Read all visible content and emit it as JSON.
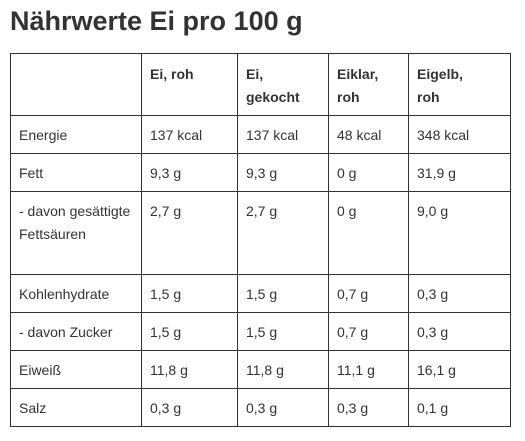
{
  "title": "Nährwerte Ei pro 100 g",
  "table": {
    "headers": [
      "",
      "Ei, roh",
      "Ei,\ngekocht",
      "Eiklar,\nroh",
      "Eigelb,\nroh"
    ],
    "rows": [
      [
        "Energie",
        "137 kcal",
        "137 kcal",
        "48 kcal",
        "348 kcal"
      ],
      [
        "Fett",
        "9,3 g",
        "9,3 g",
        "0 g",
        "31,9 g"
      ],
      [
        "- davon gesättigte Fettsäuren",
        "2,7 g",
        "2,7 g",
        "0 g",
        "9,0 g"
      ],
      [
        "Kohlenhydrate",
        "1,5 g",
        "1,5 g",
        "0,7 g",
        "0,3 g"
      ],
      [
        "- davon Zucker",
        "1,5 g",
        "1,5 g",
        "0,7 g",
        "0,3 g"
      ],
      [
        "Eiweiß",
        "11,8 g",
        "11,8 g",
        "11,1 g",
        "16,1 g"
      ],
      [
        "Salz",
        "0,3 g",
        "0,3 g",
        "0,3 g",
        "0,1 g"
      ]
    ]
  },
  "colors": {
    "text": "#333333",
    "border": "#333333",
    "background": "#ffffff"
  }
}
